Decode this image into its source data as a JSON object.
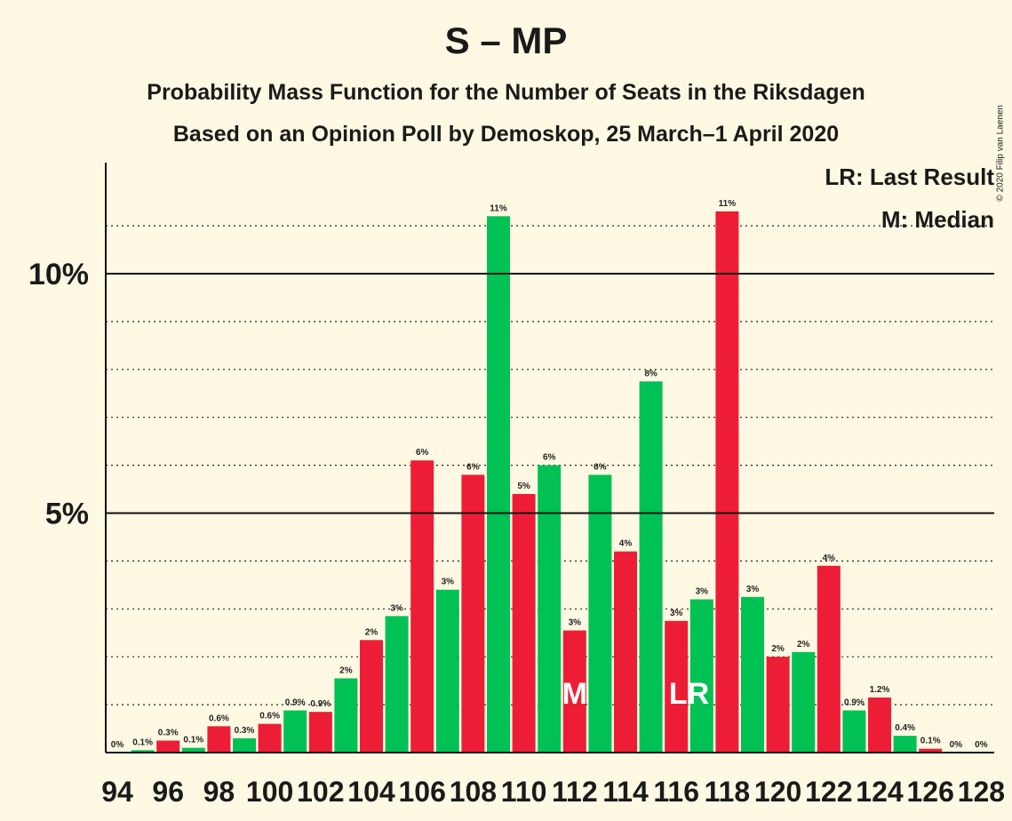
{
  "header": {
    "title": "S – MP",
    "subtitle1": "Probability Mass Function for the Number of Seats in the Riksdagen",
    "subtitle2": "Based on an Opinion Poll by Demoskop, 25 March–1 April 2020",
    "copyright": "© 2020 Filip van Laenen"
  },
  "legend": {
    "last_result": "LR: Last Result",
    "median": "M: Median"
  },
  "colors": {
    "red": "#EE1D36",
    "green": "#00C154",
    "background": "#FFF9E3"
  },
  "chart_data": {
    "type": "bar",
    "title": "S – MP",
    "xlabel": "",
    "ylabel": "",
    "ylim": [
      0,
      12.4
    ],
    "yticks": [
      {
        "value": 5,
        "label": "5%"
      },
      {
        "value": 10,
        "label": "10%"
      }
    ],
    "xtick_labels": [
      "94",
      "96",
      "98",
      "100",
      "102",
      "104",
      "106",
      "108",
      "110",
      "112",
      "114",
      "116",
      "118",
      "120",
      "122",
      "124",
      "126",
      "128"
    ],
    "seats": [
      94,
      95,
      96,
      97,
      98,
      99,
      100,
      101,
      102,
      103,
      104,
      105,
      106,
      107,
      108,
      109,
      110,
      111,
      112,
      113,
      114,
      115,
      116,
      117,
      118,
      119,
      120,
      121,
      122,
      123,
      124,
      125,
      126,
      127,
      128
    ],
    "values": [
      0,
      0.05,
      0.25,
      0.1,
      0.55,
      0.3,
      0.6,
      0.88,
      0.85,
      1.55,
      2.35,
      2.85,
      6.1,
      3.4,
      5.8,
      11.2,
      5.4,
      6.0,
      2.55,
      5.8,
      4.2,
      7.75,
      2.75,
      3.2,
      11.3,
      3.25,
      2.0,
      2.1,
      3.9,
      0.88,
      1.15,
      0.35,
      0.08,
      0,
      0
    ],
    "data_labels": [
      "0%",
      "0.1%",
      "0.3%",
      "0.1%",
      "0.6%",
      "0.3%",
      "0.6%",
      "0.9%",
      "0.9%",
      "2%",
      "2%",
      "3%",
      "6%",
      "3%",
      "6%",
      "11%",
      "5%",
      "6%",
      "3%",
      "6%",
      "4%",
      "8%",
      "3%",
      "3%",
      "11%",
      "3%",
      "2%",
      "2%",
      "4%",
      "0.9%",
      "1.2%",
      "0.4%",
      "0.1%",
      "0%",
      "0%"
    ],
    "median_seat": 112,
    "median_marker": "M",
    "last_result_seat": 116,
    "last_result_marker": "LR"
  }
}
